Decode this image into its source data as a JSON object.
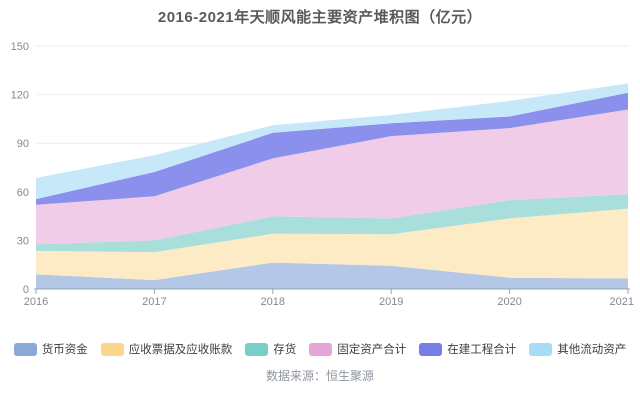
{
  "title": "2016-2021年天顺风能主要资产堆积图（亿元）",
  "source_text": "数据来源：恒生聚源",
  "colors": {
    "axis_line": "#97a3b4",
    "grid_line": "#e9edf4",
    "tick_label": "#85898f",
    "title_color": "#565a5f",
    "legend_text": "#3a3e44",
    "source_text": "#8f959e"
  },
  "chart_data": {
    "type": "area",
    "stacked": true,
    "title": "2016-2021年天顺风能主要资产堆积图（亿元）",
    "xlabel": "",
    "ylabel": "",
    "x": [
      "2016",
      "2017",
      "2018",
      "2019",
      "2020",
      "2021"
    ],
    "ylim": [
      0,
      150
    ],
    "yticks": [
      0,
      30,
      60,
      90,
      120,
      150
    ],
    "grid": true,
    "legend_position": "bottom",
    "series": [
      {
        "name": "货币资金",
        "color": "#8CA8D8",
        "area_color": "#B4C7E7",
        "values": [
          9.0,
          5.5,
          16.3,
          14.3,
          7.0,
          6.5
        ]
      },
      {
        "name": "应收票据及应收账款",
        "color": "#FBD78C",
        "area_color": "#FDEBC5",
        "values": [
          14.5,
          17.3,
          17.8,
          19.5,
          36.6,
          43.1
        ]
      },
      {
        "name": "存货",
        "color": "#79CEC8",
        "area_color": "#A9DFDA",
        "values": [
          4.1,
          7.2,
          10.7,
          9.8,
          11.3,
          8.9
        ]
      },
      {
        "name": "固定资产合计",
        "color": "#E3A6D6",
        "area_color": "#F0CCE8",
        "values": [
          24.4,
          27.2,
          35.8,
          50.8,
          44.4,
          52.3
        ]
      },
      {
        "name": "在建工程合计",
        "color": "#767CE8",
        "area_color": "#8A90EC",
        "values": [
          3.5,
          15.0,
          15.8,
          7.9,
          7.2,
          10.3
        ]
      },
      {
        "name": "其他流动资产",
        "color": "#A6DCF6",
        "area_color": "#C6E8F9",
        "values": [
          13.0,
          10.4,
          4.7,
          5.1,
          9.6,
          5.8
        ]
      }
    ]
  }
}
